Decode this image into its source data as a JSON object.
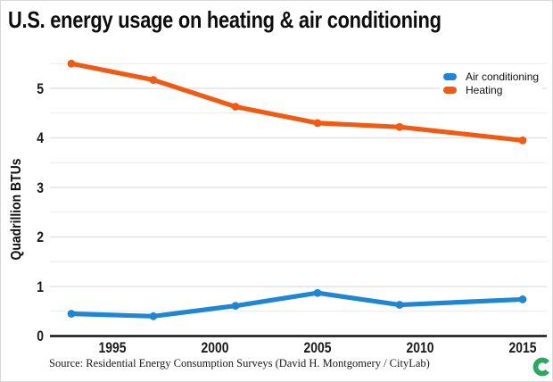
{
  "title": "U.S. energy usage on heating & air conditioning",
  "source": "Source: Residential Energy Consumption Surveys (David H. Montgomery / CityLab)",
  "logo": {
    "name": "citylab-c-logo",
    "color": "#2aa85f"
  },
  "axis": {
    "y_label": "Quadrillion BTUs",
    "y_ticks": [
      0,
      1,
      2,
      3,
      4,
      5
    ],
    "x_ticks": [
      1995,
      2000,
      2005,
      2010,
      2015
    ]
  },
  "colors": {
    "air_conditioning": "#1f86d2",
    "heating": "#f05a12",
    "grid_major": "#dedede",
    "grid_minor": "#ececec",
    "axis_line": "#141414",
    "text": "#0d0d0d"
  },
  "chart_data": {
    "type": "line",
    "x": [
      1993,
      1997,
      2001,
      2005,
      2009,
      2015
    ],
    "series": [
      {
        "name": "Air conditioning",
        "color": "#1f86d2",
        "values": [
          0.45,
          0.4,
          0.61,
          0.87,
          0.63,
          0.74
        ]
      },
      {
        "name": "Heating",
        "color": "#f05a12",
        "values": [
          5.5,
          5.17,
          4.63,
          4.3,
          4.22,
          3.95
        ]
      }
    ],
    "title": "U.S. energy usage on heating & air conditioning",
    "xlabel": "",
    "ylabel": "Quadrillion BTUs",
    "xlim": [
      1992,
      2016.2
    ],
    "ylim": [
      0,
      5.72
    ],
    "grid": "horizontal every 0.5",
    "legend_position": "top-right",
    "markers": "filled circles at each data point"
  }
}
